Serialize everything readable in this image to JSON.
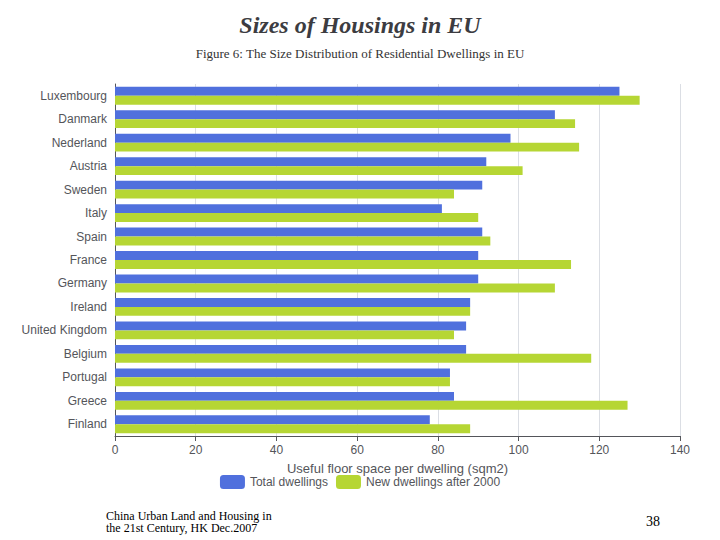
{
  "chart_data": {
    "type": "bar",
    "title": "Sizes of Housings in EU",
    "subtitle": "Figure 6: The Size Distribution of Residential Dwellings in EU",
    "xlabel": "Useful floor space per dwelling (sqm2)",
    "orientation": "horizontal",
    "categories": [
      "Finland",
      "Greece",
      "Portugal",
      "Belgium",
      "United Kingdom",
      "Ireland",
      "Germany",
      "France",
      "Spain",
      "Italy",
      "Sweden",
      "Austria",
      "Nederland",
      "Danmark",
      "Luxembourg"
    ],
    "series": [
      {
        "name": "Total dwellings",
        "values": [
          78,
          84,
          83,
          87,
          87,
          88,
          90,
          90,
          91,
          81,
          91,
          92,
          98,
          109,
          125
        ]
      },
      {
        "name": "New dwellings after 2000",
        "values": [
          88,
          127,
          83,
          118,
          84,
          88,
          109,
          113,
          93,
          90,
          84,
          101,
          115,
          114,
          130
        ]
      }
    ],
    "xlim": [
      0,
      140
    ],
    "xticks": [
      0,
      20,
      40,
      60,
      80,
      100,
      120,
      140
    ],
    "grid": true,
    "legend": "bottom",
    "annotations": [
      "China Urban Land and Housing in\nthe 21st Century, HK Dec.2007",
      "38"
    ]
  }
}
